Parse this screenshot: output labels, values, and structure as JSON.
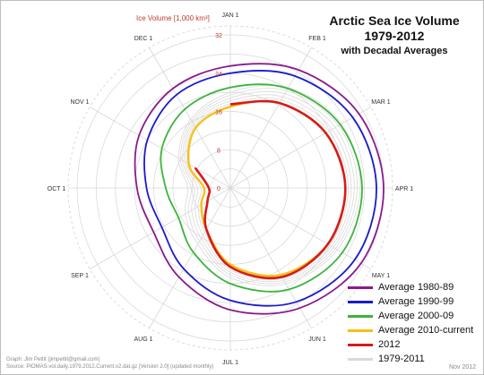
{
  "title": {
    "line1": "Arctic Sea Ice Volume",
    "line2": "1979-2012",
    "line3": "with Decadal Averages"
  },
  "axis_title": "Ice Volume [1,000 km³]",
  "footer": {
    "credit": "Graph: Jim Pettit (jimpettit@gmail.com)",
    "source": "Source: PIOMAS.vol.daily.1979.2012.Current.v2.dat.gz [Version 2.0] (updated monthly)",
    "date": "Nov 2012"
  },
  "colors": {
    "avg_1980_89": "#8b1a8b",
    "avg_1990_99": "#1a1acc",
    "avg_2000_09": "#3cb33c",
    "avg_2010_cur": "#f5c018",
    "y2012": "#d61a1a",
    "years_1979_2011": "#d9d9d9",
    "radial_label": "#c0392b",
    "grid": "#d6d6d6"
  },
  "chart_data": {
    "type": "polar-line",
    "radial_axis": {
      "label": "Ice Volume [1,000 km³]",
      "ticks": [
        0,
        8,
        16,
        24,
        32
      ],
      "range": [
        0,
        32
      ]
    },
    "angular_axis": {
      "labels": [
        "JAN 1",
        "FEB 1",
        "MAR 1",
        "APR 1",
        "MAY 1",
        "JUN 1",
        "JUL 1",
        "AUG 1",
        "SEP 1",
        "OCT 1",
        "NOV 1",
        "DEC 1"
      ],
      "direction": "clockwise",
      "start": "top"
    },
    "series": [
      {
        "name": "Average 1980-89",
        "color": "#8b1a8b",
        "values": [
          25.5,
          28.5,
          31.0,
          32.0,
          31.5,
          29.0,
          25.5,
          21.5,
          18.5,
          19.5,
          22.0,
          24.0
        ]
      },
      {
        "name": "Average 1990-99",
        "color": "#1a1acc",
        "values": [
          24.0,
          27.0,
          29.5,
          30.5,
          30.0,
          27.5,
          23.5,
          19.5,
          16.5,
          17.5,
          20.0,
          22.5
        ]
      },
      {
        "name": "Average 2000-09",
        "color": "#3cb33c",
        "values": [
          21.0,
          24.0,
          26.5,
          27.5,
          27.0,
          24.5,
          20.0,
          15.5,
          12.5,
          13.5,
          16.5,
          19.0
        ]
      },
      {
        "name": "Average 2010-current",
        "color": "#f5c018",
        "values": [
          17.0,
          20.5,
          23.0,
          24.0,
          23.5,
          21.0,
          16.0,
          10.0,
          7.0,
          5.5,
          10.0,
          14.5
        ]
      },
      {
        "name": "2012",
        "color": "#d61a1a",
        "values": [
          17.5,
          20.5,
          23.0,
          24.0,
          23.5,
          21.5,
          16.5,
          10.0,
          5.5,
          4.5,
          8.5,
          null
        ]
      },
      {
        "name": "1979-2011",
        "color": "#d9d9d9",
        "values": []
      }
    ]
  }
}
